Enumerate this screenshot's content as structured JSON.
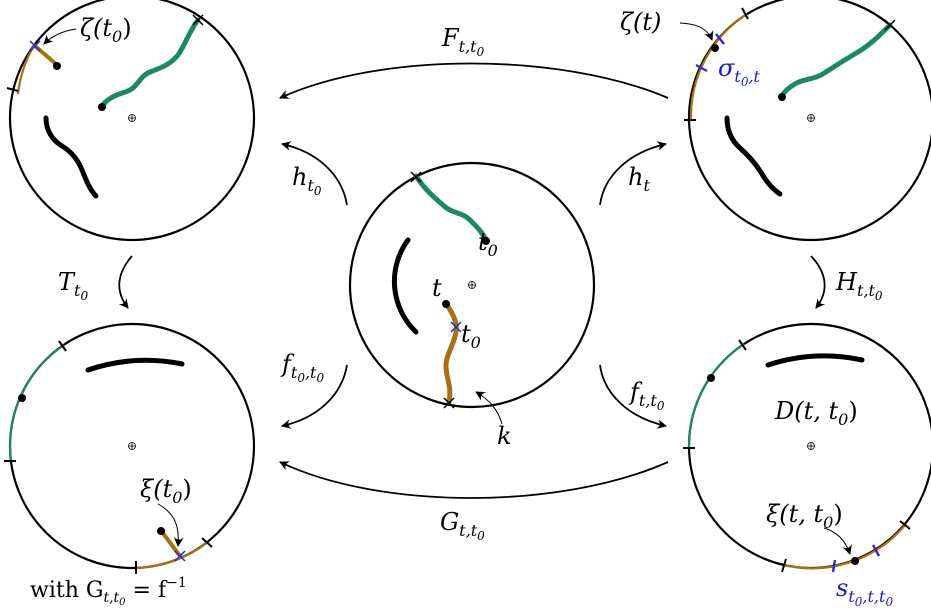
{
  "colors": {
    "green": "#1b8a63",
    "brown": "#a8710d",
    "blue": "#2b2bd6",
    "black": "#000000"
  },
  "labels": {
    "zeta_t0": {
      "main": "ζ(t",
      "sub": "0",
      "close": ")"
    },
    "zeta_t": "ζ(t)",
    "sigma": {
      "main": "σ",
      "sub": "t",
      "subsub": "0",
      "sub2": ",t"
    },
    "F": {
      "main": "F",
      "sub": "t,t",
      "subsub": "0"
    },
    "h_t0": {
      "main": "h",
      "sub": "t",
      "subsub": "0"
    },
    "h_t": {
      "main": "h",
      "sub": "t"
    },
    "t0_top": {
      "main": "t",
      "sub": "0"
    },
    "t_mid": "t",
    "t0_mid": {
      "main": "t",
      "sub": "0"
    },
    "T": {
      "main": "T",
      "sub": "t",
      "subsub": "0"
    },
    "H": {
      "main": "H",
      "sub": "t,t",
      "subsub": "0"
    },
    "f_t0": {
      "main": "f",
      "sub": "t",
      "subsub": "0",
      "sub2": ",t",
      "subsub2": "0"
    },
    "f_t": {
      "main": "f",
      "sub": "t,t",
      "subsub": "0"
    },
    "k": "k",
    "D": {
      "main": "D(t, t",
      "sub": "0",
      "close": ")"
    },
    "xi_t0": {
      "main": "ξ(t",
      "sub": "0",
      "close": ")"
    },
    "xi": {
      "main": "ξ(t, t",
      "sub": "0",
      "close": ")"
    },
    "G": {
      "main": "G",
      "sub": "t,t",
      "subsub": "0"
    },
    "s": {
      "main": "s",
      "sub": "t",
      "subsub": "0",
      "sub2": ",t,t",
      "subsub2": "0"
    },
    "footer": "with  G",
    "footer_mid": "t,t",
    "footer_sub": "0",
    "footer_rest": " = f",
    "footer_sup": "−1"
  }
}
